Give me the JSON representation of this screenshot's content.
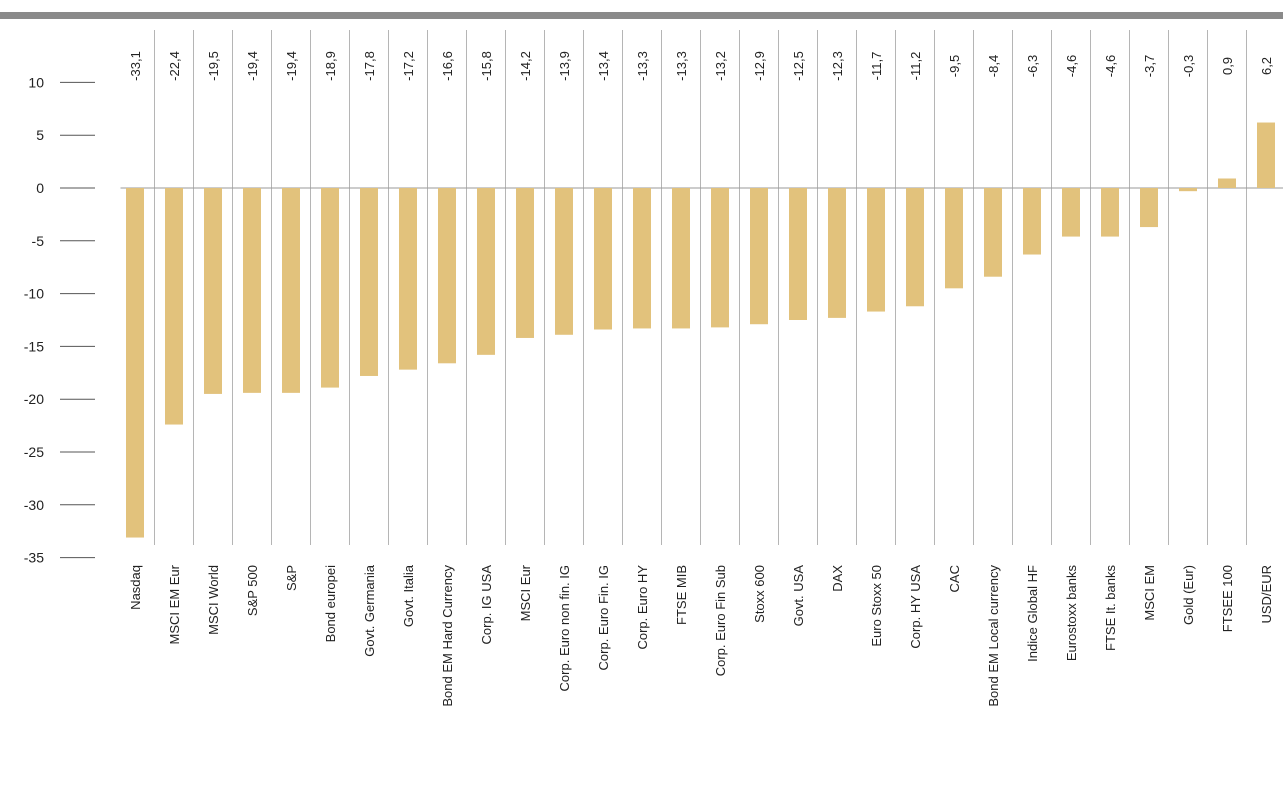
{
  "chart_data": {
    "type": "bar",
    "title": "",
    "xlabel": "",
    "ylabel": "",
    "ylim": [
      -35,
      10
    ],
    "yticks": [
      10,
      5,
      0,
      -5,
      -10,
      -15,
      -20,
      -25,
      -30,
      -35
    ],
    "grid": false,
    "bar_color": "#e2c27c",
    "categories": [
      "Nasdaq",
      "MSCI EM Eur",
      "MSCI World",
      "S&P 500",
      "S&P",
      "Bond europei",
      "Govt. Germania",
      "Govt. Italia",
      "Bond EM Hard Currency",
      "Corp. IG USA",
      "MSCI Eur",
      "Corp. Euro non fin. IG",
      "Corp. Euro Fin. IG",
      "Corp. Euro HY",
      "FTSE MIB",
      "Corp. Euro Fin Sub",
      "Stoxx 600",
      "Govt. USA",
      "DAX",
      "Euro Stoxx 50",
      "Corp. HY USA",
      "CAC",
      "Bond EM Local currency",
      "Indice Global HF",
      "Eurostoxx banks",
      "FTSE It. banks",
      "MSCI EM",
      "Gold (Eur)",
      "FTSEE 100",
      "USD/EUR"
    ],
    "values": [
      -33.1,
      -22.4,
      -19.5,
      -19.4,
      -19.4,
      -18.9,
      -17.8,
      -17.2,
      -16.6,
      -15.8,
      -14.2,
      -13.9,
      -13.4,
      -13.3,
      -13.3,
      -13.2,
      -12.9,
      -12.5,
      -12.3,
      -11.7,
      -11.2,
      -9.5,
      -8.4,
      -6.3,
      -4.6,
      -4.6,
      -3.7,
      -0.3,
      0.9,
      6.2
    ],
    "data_labels": [
      "-33,1",
      "-22,4",
      "-19,5",
      "-19,4",
      "-19,4",
      "-18,9",
      "-17,8",
      "-17,2",
      "-16,6",
      "-15,8",
      "-14,2",
      "-13,9",
      "-13,4",
      "-13,3",
      "-13,3",
      "-13,2",
      "-12,9",
      "-12,5",
      "-12,3",
      "-11,7",
      "-11,2",
      "-9,5",
      "-8,4",
      "-6,3",
      "-4,6",
      "-4,6",
      "-3,7",
      "-0,3",
      "0,9",
      "6,2"
    ]
  }
}
